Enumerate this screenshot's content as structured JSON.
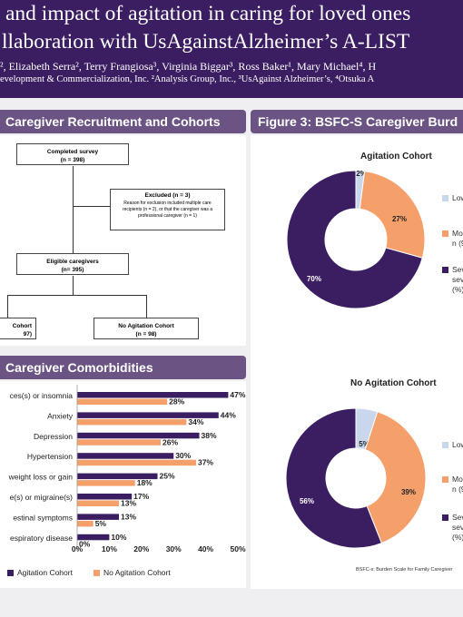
{
  "banner": {
    "title_line1": "and impact of agitation in caring for loved ones",
    "title_line2": "llaboration with UsAgainstAlzheimer’s A-LIST",
    "authors": "², Elizabeth Serra², Terry Frangiosa³, Virginia Biggar³, Ross Baker¹, Mary Michael⁴, H",
    "affiliations": "evelopment & Commercialization, Inc. ²Analysis Group, Inc., ³UsAgainst Alzheimer’s, ⁴Otsuka A"
  },
  "section_recruitment": {
    "header": "Caregiver Recruitment and Cohorts",
    "completed": {
      "label": "Completed survey",
      "n": "(n = 398)"
    },
    "excluded": {
      "label": "Excluded (n = 3)",
      "note": "Reason for exclusion included multiple care recipients (n = 2), or that the caregiver was a professional caregiver (n = 1)"
    },
    "eligible": {
      "label": "Eligible caregivers",
      "n": "(n= 395)"
    },
    "agitation": {
      "label": "Cohort",
      "n": "97)"
    },
    "no_agitation": {
      "label": "No Agitation Cohort",
      "n": "(n = 98)"
    }
  },
  "section_comorbidities": {
    "header": "Caregiver Comorbidities",
    "legend": {
      "agitation": "Agitation Cohort",
      "no_agitation": "No Agitation Cohort"
    }
  },
  "section_bsfc": {
    "header": "Figure 3: BSFC-S Caregiver Burd",
    "footnote": "BSFC-s: Burden Scale for Family Caregiver",
    "legend": {
      "low": "Low",
      "moderate_line1": "Mo",
      "moderate_line2": "n (9",
      "severe_line1": "Sev",
      "severe_line2": "sev",
      "severe_line3": "(%)"
    }
  },
  "colors": {
    "banner": "#3b1e62",
    "header": "#6b5484",
    "agitation": "#3b1e62",
    "no_agitation": "#f5a06b",
    "low": "#c9d6ec"
  },
  "chart_data": [
    {
      "type": "bar",
      "title": "Caregiver Comorbidities",
      "categories": [
        "ces(s) or insomnia",
        "Anxiety",
        "Depression",
        "Hypertension",
        "weight loss or gain",
        "e(s) or migraine(s)",
        "estinal symptoms",
        "espiratory disease"
      ],
      "series": [
        {
          "name": "Agitation Cohort",
          "values": [
            47,
            44,
            38,
            30,
            25,
            17,
            13,
            10
          ]
        },
        {
          "name": "No Agitation Cohort",
          "values": [
            28,
            34,
            26,
            37,
            18,
            13,
            5,
            0
          ]
        }
      ],
      "xlim": [
        0,
        50
      ],
      "ticks": [
        "0%",
        "10%",
        "20%",
        "30%",
        "40%",
        "50%"
      ],
      "legend_position": "bottom"
    },
    {
      "type": "pie",
      "title": "Agitation Cohort",
      "labels": [
        "Low",
        "Moderate",
        "Severe"
      ],
      "values": [
        2,
        27,
        70
      ],
      "display": [
        "2%",
        "27%",
        "70%"
      ]
    },
    {
      "type": "pie",
      "title": "No Agitation Cohort",
      "labels": [
        "Low",
        "Moderate",
        "Severe"
      ],
      "values": [
        5,
        39,
        56
      ],
      "display": [
        "5%",
        "39%",
        "56%"
      ]
    }
  ]
}
